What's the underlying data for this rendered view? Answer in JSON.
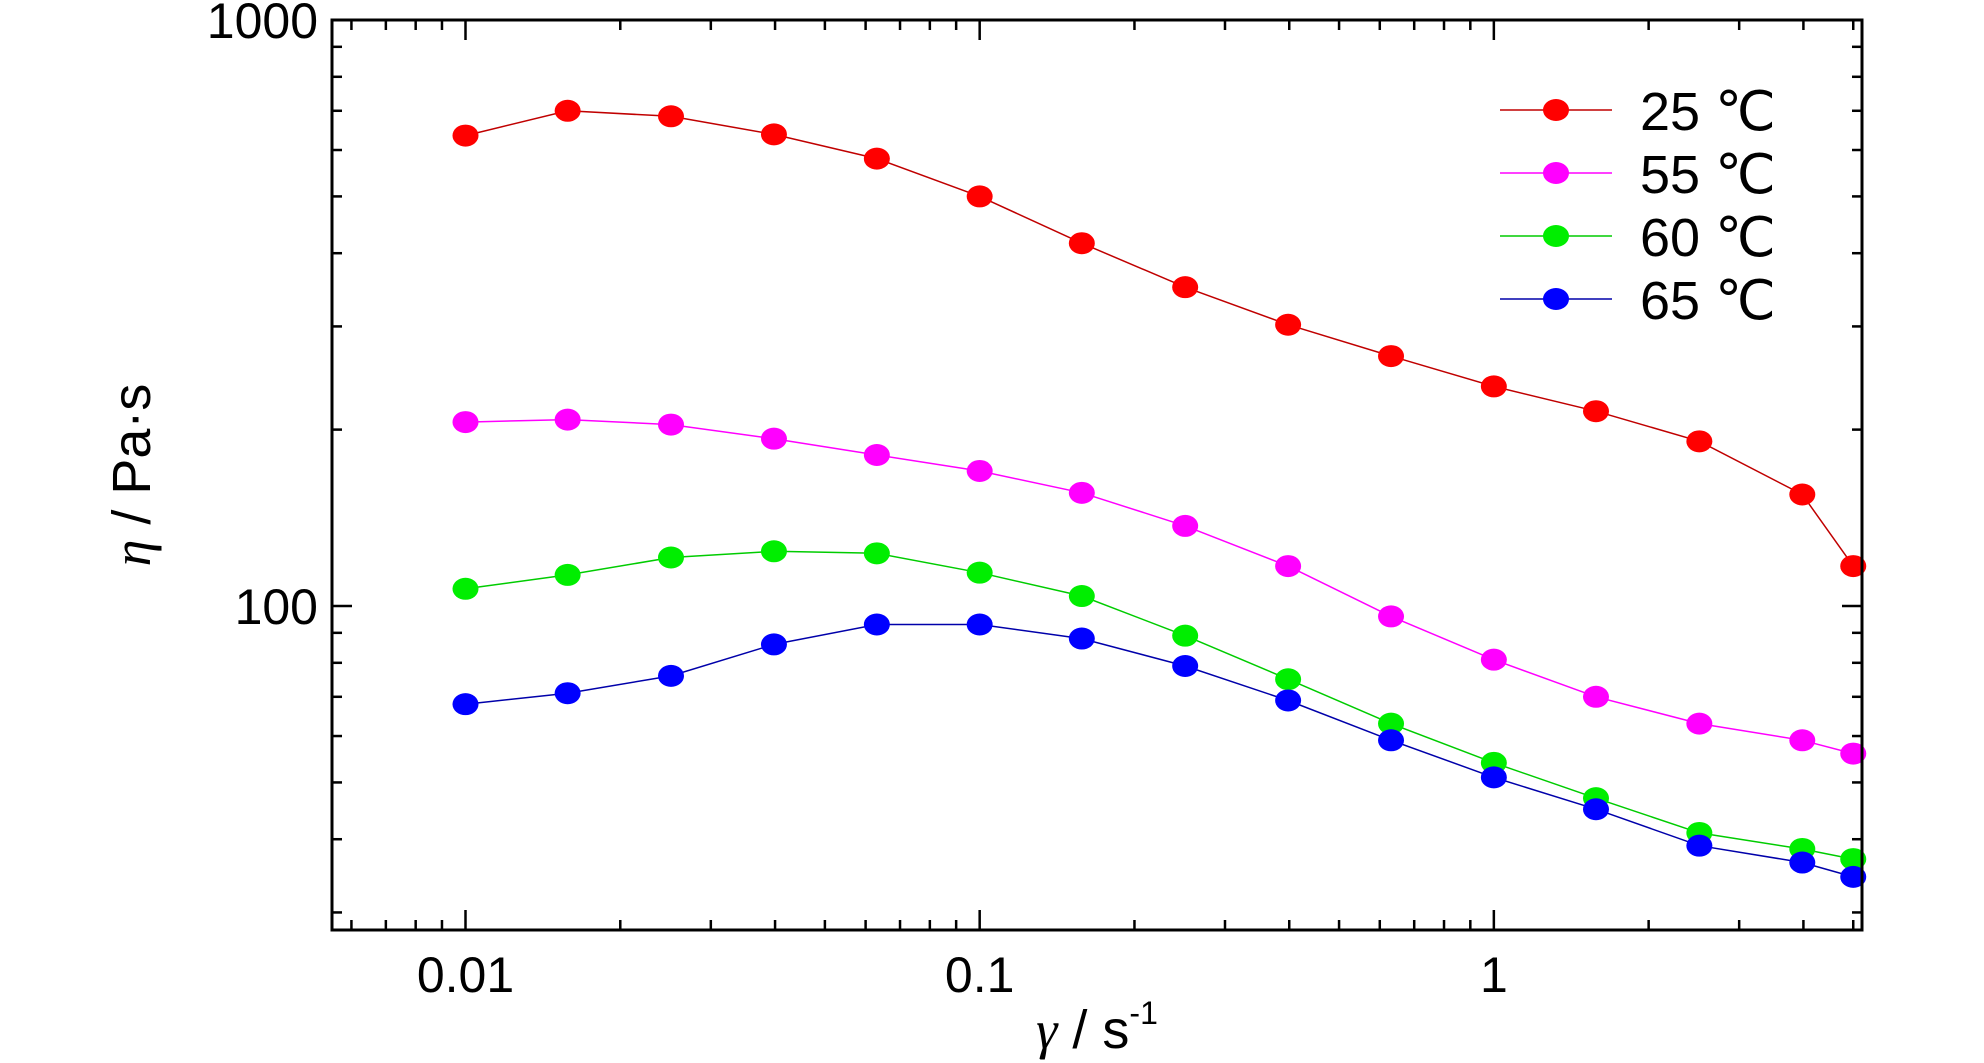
{
  "chart_data": {
    "type": "line",
    "x_scale": "log",
    "y_scale": "log",
    "xlim": [
      0.0055,
      5.2
    ],
    "ylim": [
      28,
      1000
    ],
    "xticks": [
      {
        "value": 0.01,
        "label": "0.01"
      },
      {
        "value": 0.1,
        "label": "0.1"
      },
      {
        "value": 1,
        "label": "1"
      }
    ],
    "yticks": [
      {
        "value": 100,
        "label": "100"
      },
      {
        "value": 1000,
        "label": "1000"
      }
    ],
    "xlabel": {
      "symbol": "γ",
      "text": " / s",
      "sup": "-1"
    },
    "ylabel": {
      "symbol": "η",
      "text": " / Pa·s"
    },
    "legend_position": "top-right",
    "grid": false,
    "x": [
      0.01,
      0.0158,
      0.0251,
      0.0398,
      0.0631,
      0.1,
      0.158,
      0.251,
      0.398,
      0.631,
      1.0,
      1.58,
      2.51,
      3.98,
      5.0
    ],
    "series": [
      {
        "name": "25 ℃",
        "color": "#ff0000",
        "line_color": "#c00000",
        "values": [
          635,
          700,
          685,
          638,
          580,
          500,
          416,
          350,
          302,
          267,
          237,
          215,
          191,
          155,
          117
        ]
      },
      {
        "name": "55 ℃",
        "color": "#ff00ff",
        "line_color": "#ff00ff",
        "values": [
          206,
          208,
          204,
          193,
          181,
          170,
          156,
          137,
          117,
          96,
          81,
          70,
          63,
          59,
          56
        ]
      },
      {
        "name": "60 ℃",
        "color": "#00ee00",
        "line_color": "#00cc00",
        "values": [
          107,
          113,
          121,
          124,
          123,
          114,
          104,
          89,
          75,
          63,
          54,
          47,
          41,
          38.5,
          37
        ]
      },
      {
        "name": "65 ℃",
        "color": "#0000ff",
        "line_color": "#0000aa",
        "values": [
          68,
          71,
          76,
          86,
          93,
          93,
          88,
          79,
          69,
          59,
          51,
          45,
          39,
          36.5,
          34.5
        ]
      }
    ]
  }
}
